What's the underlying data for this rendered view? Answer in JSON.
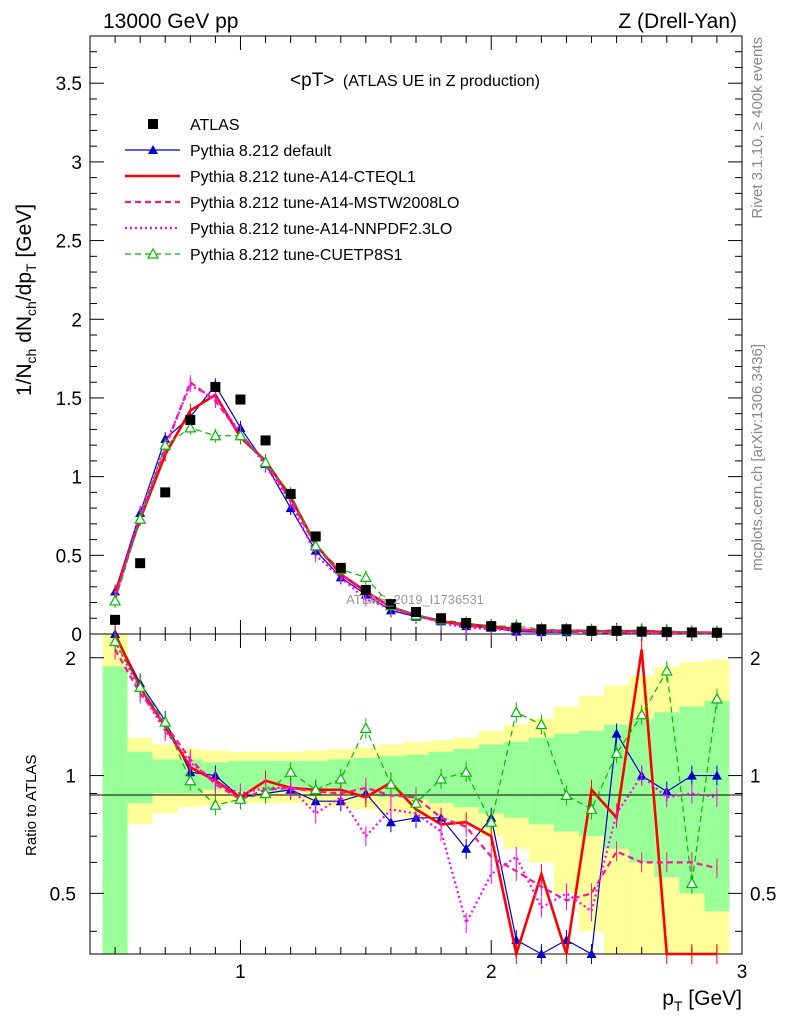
{
  "header": {
    "left": "13000 GeV pp",
    "right": "Z (Drell-Yan)"
  },
  "side_labels": {
    "rivet": "Rivet 3.1.10, ≥ 400k events",
    "mcplots": "mcplots.cern.ch [arXiv:1306.3436]"
  },
  "watermark": "ATLAS_2019_I1736531",
  "chart_data": {
    "type": "line",
    "title": "<pT> (ATLAS UE in Z production)",
    "title_main": "<pT>",
    "title_sub": "(ATLAS UE in Z production)",
    "ylabel_top": "1/N_ch dN_ch/dp_T [GeV]",
    "ylabel_top_parts": [
      "1/N",
      "ch",
      " dN",
      "ch",
      "/dp",
      "T",
      " [GeV]"
    ],
    "ylabel_bottom": "Ratio to ATLAS",
    "xlabel": "p_T [GeV]",
    "xlabel_parts": [
      "p",
      "T",
      " [GeV]"
    ],
    "xlim": [
      0.4,
      3.0
    ],
    "ylim_top": [
      0,
      3.8
    ],
    "ylim_bottom": [
      0.35,
      2.3
    ],
    "x_ticks": [
      "1",
      "2",
      "3"
    ],
    "y_ticks_top": [
      "0",
      "0.5",
      "1",
      "1.5",
      "2",
      "2.5",
      "3",
      "3.5"
    ],
    "y_ticks_bottom": [
      "0.5",
      "1",
      "2"
    ],
    "x": [
      0.5,
      0.6,
      0.7,
      0.8,
      0.9,
      1.0,
      1.1,
      1.2,
      1.3,
      1.4,
      1.5,
      1.6,
      1.7,
      1.8,
      1.9,
      2.0,
      2.1,
      2.2,
      2.3,
      2.4,
      2.5,
      2.6,
      2.7,
      2.8,
      2.9
    ],
    "data": {
      "name": "ATLAS",
      "values": [
        0.09,
        0.45,
        0.9,
        1.36,
        1.57,
        1.49,
        1.23,
        0.89,
        0.62,
        0.42,
        0.28,
        0.19,
        0.14,
        0.1,
        0.07,
        0.05,
        0.04,
        0.03,
        0.03,
        0.02,
        0.02,
        0.015,
        0.012,
        0.01,
        0.008
      ]
    },
    "band_inner": [
      1.9,
      1.15,
      1.1,
      1.1,
      1.08,
      1.09,
      1.09,
      1.09,
      1.09,
      1.1,
      1.11,
      1.12,
      1.13,
      1.15,
      1.17,
      1.2,
      1.22,
      1.25,
      1.28,
      1.3,
      1.35,
      1.4,
      1.45,
      1.5,
      1.55
    ],
    "band_outer": [
      2.3,
      1.25,
      1.2,
      1.17,
      1.16,
      1.15,
      1.15,
      1.15,
      1.16,
      1.17,
      1.18,
      1.2,
      1.22,
      1.23,
      1.25,
      1.3,
      1.35,
      1.4,
      1.5,
      1.6,
      1.7,
      1.8,
      1.9,
      1.95,
      1.98
    ],
    "series": [
      {
        "name": "Pythia 8.212 default",
        "color": "#0000cc",
        "style": "solid-triangle",
        "values": [
          0.27,
          0.77,
          1.24,
          1.38,
          1.58,
          1.31,
          1.08,
          0.8,
          0.53,
          0.36,
          0.25,
          0.15,
          0.11,
          0.08,
          0.05,
          0.04,
          0.015,
          0.012,
          0.011,
          0.018,
          0.026,
          0.015,
          0.011,
          0.01,
          0.008
        ],
        "ratio": [
          2.4,
          1.72,
          1.38,
          1.02,
          1.0,
          0.88,
          0.9,
          0.92,
          0.86,
          0.86,
          0.9,
          0.76,
          0.78,
          0.78,
          0.65,
          0.78,
          0.38,
          0.3,
          0.38,
          0.3,
          1.28,
          1.0,
          0.91,
          1.0,
          1.0
        ]
      },
      {
        "name": "Pythia 8.212 tune-A14-CTEQL1",
        "color": "#ff0000",
        "style": "solid-thick",
        "values": [
          0.26,
          0.73,
          1.14,
          1.42,
          1.52,
          1.25,
          1.1,
          0.87,
          0.57,
          0.38,
          0.27,
          0.17,
          0.12,
          0.08,
          0.06,
          0.05,
          0.03,
          0.02,
          0.02,
          0.02,
          0.015,
          0.02,
          0.01,
          0.01,
          0.008
        ],
        "ratio": [
          2.35,
          1.68,
          1.33,
          1.05,
          0.97,
          0.88,
          0.97,
          0.93,
          0.92,
          0.92,
          0.88,
          0.96,
          0.82,
          0.75,
          0.76,
          0.7,
          0.3,
          0.56,
          0.25,
          0.92,
          0.78,
          2.1,
          0.3,
          0.3,
          0.3
        ]
      },
      {
        "name": "Pythia 8.212 tune-A14-MSTW2008LO",
        "color": "#ff1493",
        "style": "dashed",
        "values": [
          0.22,
          0.74,
          1.18,
          1.6,
          1.48,
          1.27,
          1.09,
          0.85,
          0.56,
          0.38,
          0.26,
          0.17,
          0.12,
          0.08,
          0.05,
          0.04,
          0.025,
          0.02,
          0.015,
          0.01,
          0.01,
          0.008,
          0.006,
          0.006,
          0.006
        ],
        "ratio": [
          2.1,
          1.62,
          1.35,
          1.1,
          0.95,
          0.87,
          0.92,
          0.93,
          0.91,
          0.9,
          0.93,
          0.89,
          0.88,
          0.78,
          0.74,
          0.62,
          0.57,
          0.52,
          0.48,
          0.5,
          0.64,
          0.6,
          0.6,
          0.6,
          0.58
        ]
      },
      {
        "name": "Pythia 8.212 tune-A14-NNPDF2.3LO",
        "color": "#ff00ff",
        "style": "dotted",
        "values": [
          0.23,
          0.76,
          1.2,
          1.58,
          1.5,
          1.28,
          1.07,
          0.84,
          0.5,
          0.36,
          0.22,
          0.16,
          0.12,
          0.07,
          0.04,
          0.03,
          0.025,
          0.02,
          0.02,
          0.015,
          0.012,
          0.01,
          0.01,
          0.009,
          0.008
        ],
        "ratio": [
          2.2,
          1.65,
          1.3,
          1.08,
          0.96,
          0.9,
          0.93,
          0.93,
          0.8,
          0.88,
          0.7,
          0.82,
          0.8,
          0.72,
          0.42,
          0.56,
          0.62,
          0.46,
          0.5,
          0.45,
          0.8,
          1.0,
          0.88,
          0.9,
          0.88
        ]
      },
      {
        "name": "Pythia 8.212 tune-CUETP8S1",
        "color": "#00bb00",
        "style": "dashed-open-triangle",
        "values": [
          0.21,
          0.73,
          1.2,
          1.31,
          1.26,
          1.26,
          1.09,
          0.89,
          0.56,
          0.41,
          0.36,
          0.18,
          0.12,
          0.09,
          0.07,
          0.05,
          0.05,
          0.03,
          0.025,
          0.022,
          0.02,
          0.025,
          0.02,
          0.01,
          0.01
        ],
        "ratio": [
          2.2,
          1.68,
          1.37,
          0.97,
          0.84,
          0.87,
          0.9,
          1.02,
          0.92,
          0.98,
          1.32,
          0.95,
          0.85,
          0.98,
          1.02,
          0.76,
          1.45,
          1.35,
          0.89,
          0.82,
          1.14,
          1.43,
          1.85,
          0.53,
          1.57
        ]
      }
    ]
  }
}
